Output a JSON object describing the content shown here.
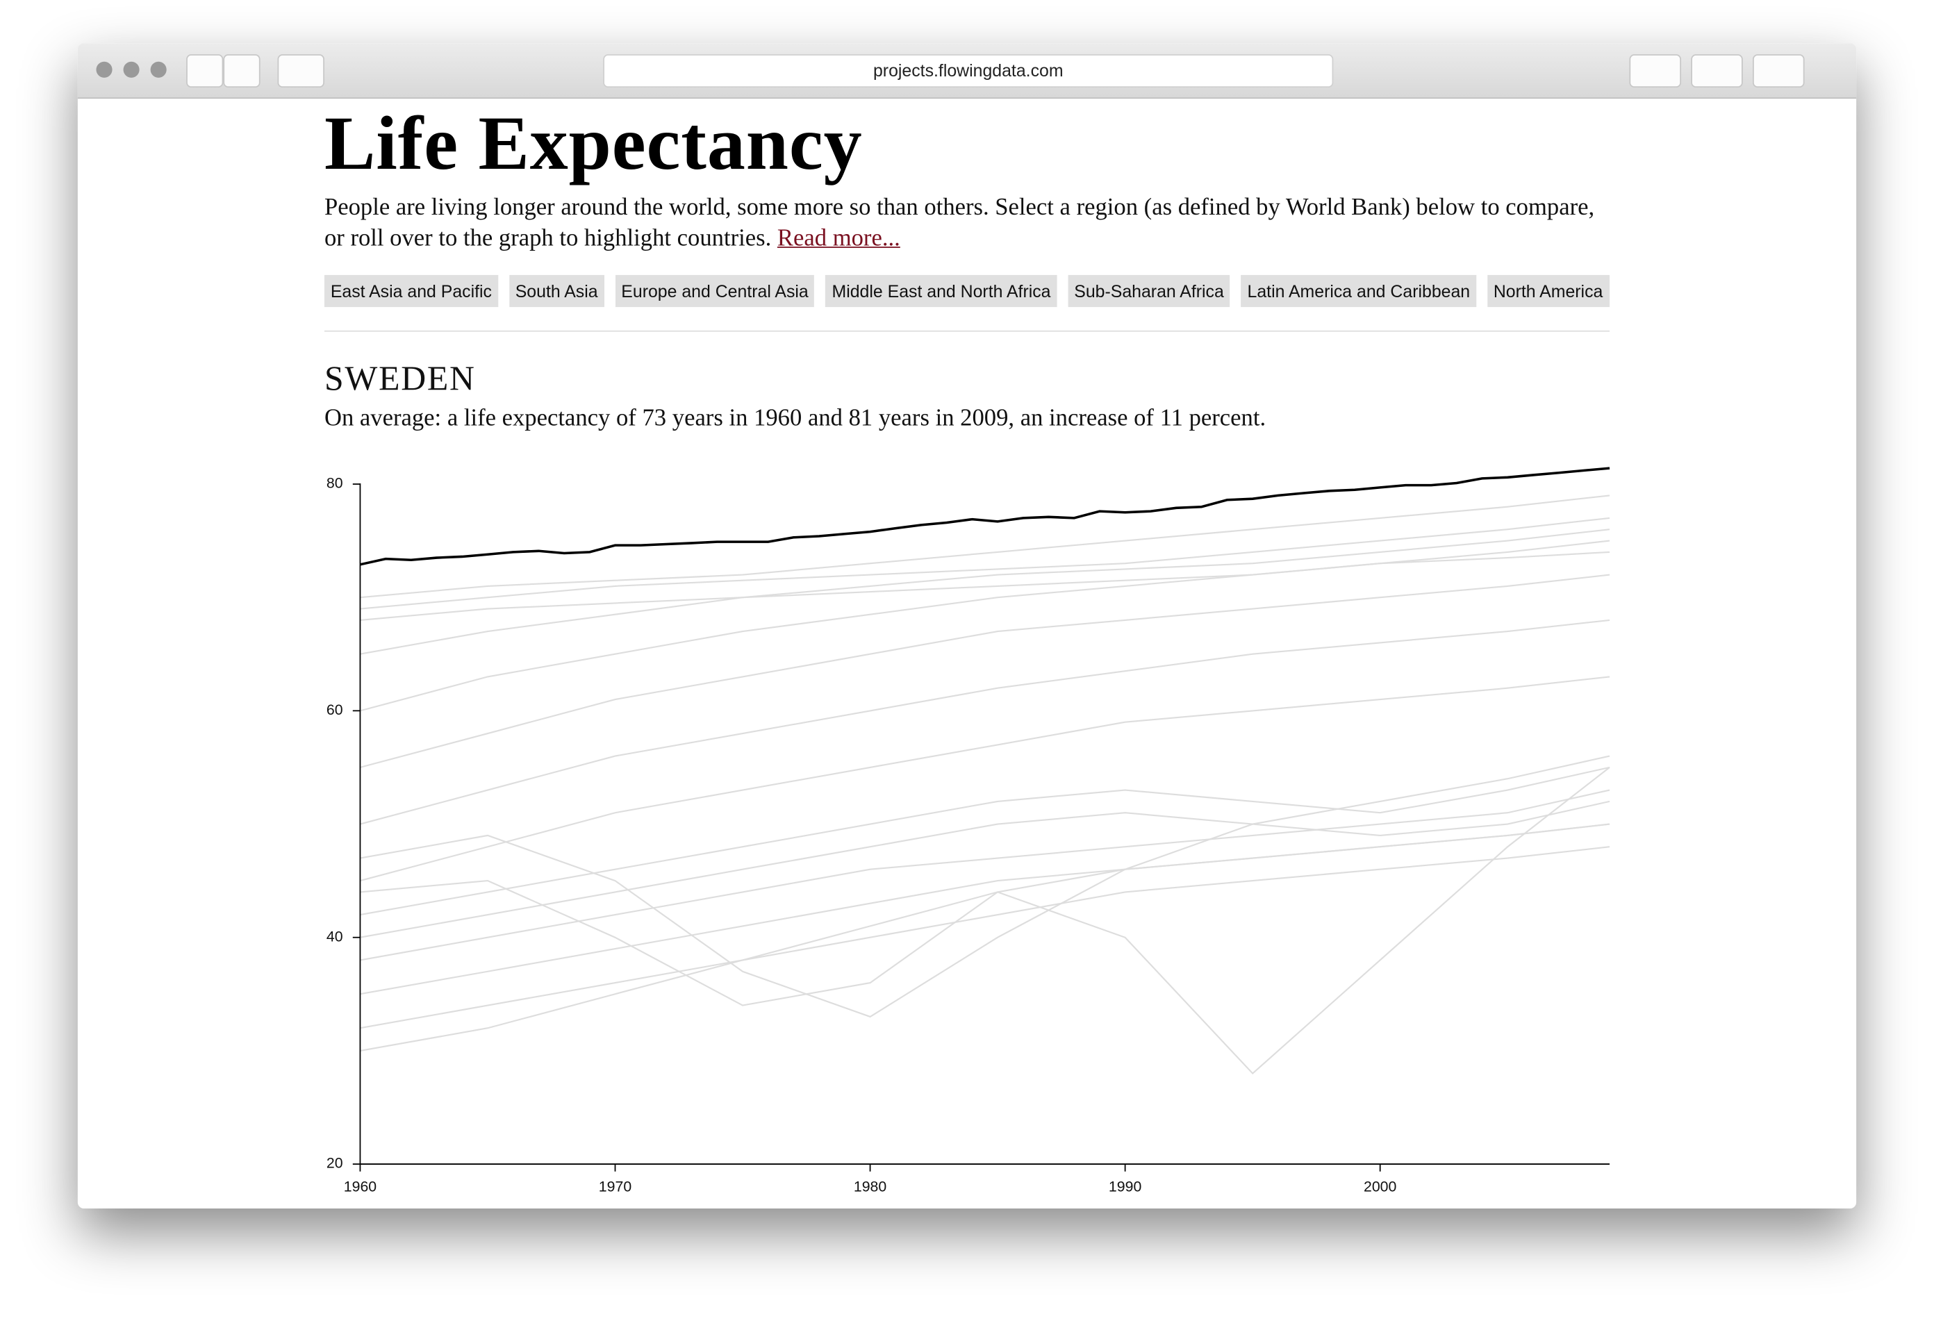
{
  "browser": {
    "url": "projects.flowingdata.com"
  },
  "header": {
    "title": "Life Expectancy",
    "intro": "People are living longer around the world, some more so than others. Select a region (as defined by World Bank) below to compare, or roll over to the graph to highlight countries.",
    "link": "Read more..."
  },
  "regions": [
    "East Asia and Pacific",
    "South Asia",
    "Europe and Central Asia",
    "Middle East and North Africa",
    "Sub-Saharan Africa",
    "Latin America and Caribbean",
    "North America"
  ],
  "country": "SWEDEN",
  "summary": "On average: a life expectancy of 73 years in 1960 and 81 years in 2009, an increase of 11 percent.",
  "chart_data": {
    "type": "line",
    "xlim": [
      1960,
      2009
    ],
    "xticks": [
      1960,
      1970,
      1980,
      1990,
      2000
    ],
    "ylim": [
      20,
      83
    ],
    "yticks": [
      20,
      40,
      60,
      80
    ],
    "series": [
      {
        "color": "#000000",
        "x": [
          1960,
          1961,
          1962,
          1963,
          1964,
          1965,
          1966,
          1967,
          1968,
          1969,
          1970,
          1971,
          1972,
          1973,
          1974,
          1975,
          1976,
          1977,
          1978,
          1979,
          1980,
          1981,
          1982,
          1983,
          1984,
          1985,
          1986,
          1987,
          1988,
          1989,
          1990,
          1991,
          1992,
          1993,
          1994,
          1995,
          1996,
          1997,
          1998,
          1999,
          2000,
          2001,
          2002,
          2003,
          2004,
          2005,
          2006,
          2007,
          2008,
          2009
        ],
        "values": [
          72.9,
          73.4,
          73.3,
          73.5,
          73.6,
          73.8,
          74.0,
          74.1,
          73.9,
          74.0,
          74.6,
          74.6,
          74.7,
          74.8,
          74.9,
          74.9,
          74.9,
          75.3,
          75.4,
          75.6,
          75.8,
          76.1,
          76.4,
          76.6,
          76.9,
          76.7,
          77.0,
          77.1,
          77.0,
          77.6,
          77.5,
          77.6,
          77.9,
          78.0,
          78.6,
          78.7,
          79.0,
          79.2,
          79.4,
          79.5,
          79.7,
          79.9,
          79.9,
          80.1,
          80.5,
          80.6,
          80.8,
          81.0,
          81.2,
          81.4
        ]
      },
      {
        "color": "#dddddd",
        "x": [
          1960,
          1965,
          1970,
          1975,
          1980,
          1985,
          1990,
          1995,
          2000,
          2005,
          2009
        ],
        "values": [
          70,
          71,
          71.5,
          72,
          73,
          74,
          75,
          76,
          77,
          78,
          79
        ]
      },
      {
        "color": "#dddddd",
        "x": [
          1960,
          1965,
          1970,
          1975,
          1980,
          1985,
          1990,
          1995,
          2000,
          2005,
          2009
        ],
        "values": [
          69,
          70,
          71,
          71.5,
          72,
          72.5,
          73,
          74,
          75,
          76,
          77
        ]
      },
      {
        "color": "#dddddd",
        "x": [
          1960,
          1965,
          1970,
          1975,
          1980,
          1985,
          1990,
          1995,
          2000,
          2005,
          2009
        ],
        "values": [
          68,
          69,
          69.5,
          70,
          70.5,
          71,
          71.5,
          72,
          73,
          73.5,
          74
        ]
      },
      {
        "color": "#dddddd",
        "x": [
          1960,
          1965,
          1970,
          1975,
          1980,
          1985,
          1990,
          1995,
          2000,
          2005,
          2009
        ],
        "values": [
          65,
          67,
          68.5,
          70,
          71,
          72,
          72.5,
          73,
          74,
          75,
          76
        ]
      },
      {
        "color": "#dddddd",
        "x": [
          1960,
          1965,
          1970,
          1975,
          1980,
          1985,
          1990,
          1995,
          2000,
          2005,
          2009
        ],
        "values": [
          60,
          63,
          65,
          67,
          68.5,
          70,
          71,
          72,
          73,
          74,
          75
        ]
      },
      {
        "color": "#dddddd",
        "x": [
          1960,
          1965,
          1970,
          1975,
          1980,
          1985,
          1990,
          1995,
          2000,
          2005,
          2009
        ],
        "values": [
          55,
          58,
          61,
          63,
          65,
          67,
          68,
          69,
          70,
          71,
          72
        ]
      },
      {
        "color": "#dddddd",
        "x": [
          1960,
          1965,
          1970,
          1975,
          1980,
          1985,
          1990,
          1995,
          2000,
          2005,
          2009
        ],
        "values": [
          50,
          53,
          56,
          58,
          60,
          62,
          63.5,
          65,
          66,
          67,
          68
        ]
      },
      {
        "color": "#dddddd",
        "x": [
          1960,
          1965,
          1970,
          1975,
          1980,
          1985,
          1990,
          1995,
          2000,
          2005,
          2009
        ],
        "values": [
          45,
          48,
          51,
          53,
          55,
          57,
          59,
          60,
          61,
          62,
          63
        ]
      },
      {
        "color": "#dddddd",
        "x": [
          1960,
          1965,
          1970,
          1975,
          1980,
          1985,
          1990,
          1995,
          2000,
          2005,
          2009
        ],
        "values": [
          42,
          44,
          46,
          48,
          50,
          52,
          53,
          52,
          51,
          53,
          55
        ]
      },
      {
        "color": "#dddddd",
        "x": [
          1960,
          1965,
          1970,
          1975,
          1980,
          1985,
          1990,
          1995,
          2000,
          2005,
          2009
        ],
        "values": [
          40,
          42,
          44,
          46,
          48,
          50,
          51,
          50,
          49,
          50,
          52
        ]
      },
      {
        "color": "#dddddd",
        "x": [
          1960,
          1965,
          1970,
          1975,
          1980,
          1985,
          1990,
          1995,
          2000,
          2005,
          2009
        ],
        "values": [
          38,
          40,
          42,
          44,
          46,
          47,
          48,
          49,
          50,
          51,
          53
        ]
      },
      {
        "color": "#dddddd",
        "x": [
          1960,
          1965,
          1970,
          1975,
          1980,
          1985,
          1990,
          1995,
          2000,
          2005,
          2009
        ],
        "values": [
          35,
          37,
          39,
          41,
          43,
          45,
          46,
          47,
          48,
          49,
          50
        ]
      },
      {
        "color": "#dddddd",
        "x": [
          1960,
          1965,
          1970,
          1975,
          1980,
          1985,
          1990,
          1995,
          2000,
          2005,
          2009
        ],
        "values": [
          32,
          34,
          36,
          38,
          40,
          42,
          44,
          45,
          46,
          47,
          48
        ]
      },
      {
        "color": "#dddddd",
        "x": [
          1960,
          1965,
          1970,
          1975,
          1980,
          1985,
          1990,
          1995,
          2000,
          2005,
          2009
        ],
        "values": [
          44,
          45,
          40,
          34,
          36,
          44,
          40,
          28,
          38,
          48,
          55
        ]
      },
      {
        "color": "#dddddd",
        "x": [
          1960,
          1965,
          1970,
          1975,
          1980,
          1985,
          1990,
          1995,
          2000,
          2005,
          2009
        ],
        "values": [
          47,
          49,
          45,
          37,
          33,
          40,
          46,
          50,
          52,
          54,
          56
        ]
      },
      {
        "color": "#dddddd",
        "x": [
          1960,
          1965,
          1970,
          1975,
          1980,
          1985,
          1990,
          1995,
          2000,
          2005,
          2009
        ],
        "values": [
          30,
          32,
          35,
          38,
          41,
          44,
          46,
          47,
          48,
          49,
          50
        ]
      }
    ]
  }
}
